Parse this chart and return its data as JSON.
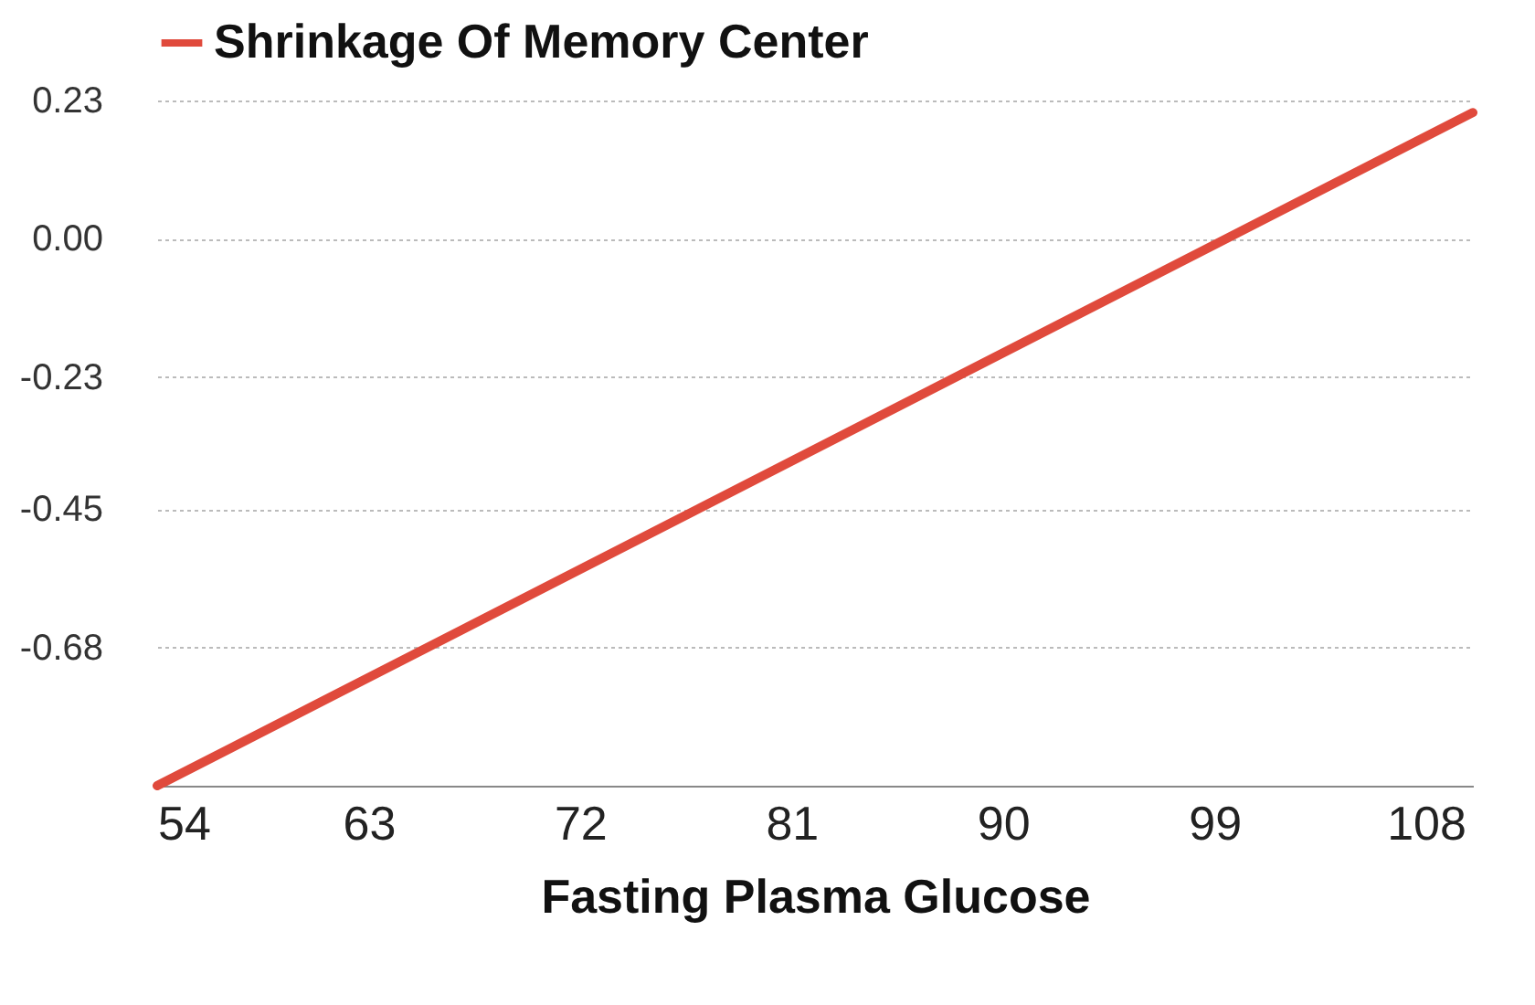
{
  "chart_data": {
    "type": "line",
    "xlabel": "Fasting Plasma Glucose",
    "x": [
      54,
      110
    ],
    "series": [
      {
        "name": "Shrinkage Of Memory Center",
        "color": "#e04a3c",
        "values": [
          -0.91,
          0.21
        ]
      }
    ],
    "xlim": [
      54,
      110
    ],
    "xticks": [
      54,
      63,
      72,
      81,
      90,
      99,
      108
    ],
    "ylim": [
      -0.91,
      0.23
    ],
    "yticks": [
      0.23,
      {
        "value": 0,
        "label": "0.00"
      },
      -0.23,
      -0.45,
      -0.68
    ],
    "grid": "y",
    "legend": "top",
    "marker": "none",
    "line_style": "solid"
  }
}
